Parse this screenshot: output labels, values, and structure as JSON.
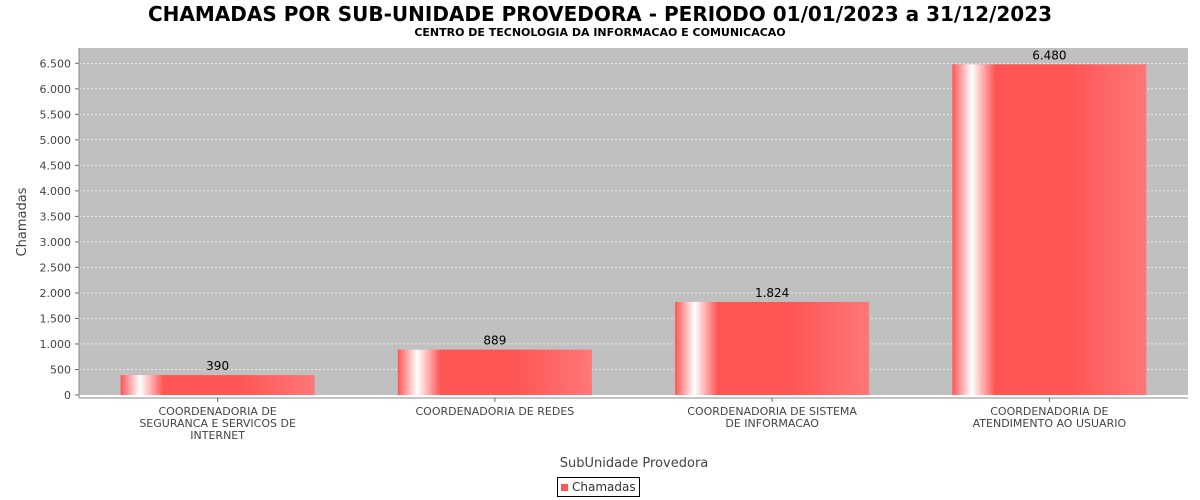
{
  "chart_data": {
    "type": "bar",
    "title": "CHAMADAS POR SUB-UNIDADE PROVEDORA - PERIODO 01/01/2023 a 31/12/2023",
    "subtitle": "CENTRO DE TECNOLOGIA DA INFORMACAO E COMUNICACAO",
    "xlabel": "SubUnidade Provedora",
    "ylabel": "Chamadas",
    "categories": [
      [
        "COORDENADORIA DE",
        "SEGURANCA E SERVICOS DE",
        "INTERNET"
      ],
      [
        "COORDENADORIA DE REDES"
      ],
      [
        "COORDENADORIA DE SISTEMA",
        "DE INFORMACAO"
      ],
      [
        "COORDENADORIA DE",
        "ATENDIMENTO AO USUARIO"
      ]
    ],
    "series": [
      {
        "name": "Chamadas",
        "values": [
          390,
          889,
          1824,
          6480
        ],
        "value_labels": [
          "390",
          "889",
          "1.824",
          "6.480"
        ]
      }
    ],
    "ylim": [
      0,
      6800
    ],
    "yticks": [
      0,
      500,
      1000,
      1500,
      2000,
      2500,
      3000,
      3500,
      4000,
      4500,
      5000,
      5500,
      6000,
      6500
    ],
    "ytick_labels": [
      "0",
      "500",
      "1.000",
      "1.500",
      "2.000",
      "2.500",
      "3.000",
      "3.500",
      "4.000",
      "4.500",
      "5.000",
      "5.500",
      "6.000",
      "6.500"
    ],
    "grid": true,
    "legend": "bottom-center",
    "colors": {
      "bar": "#ff5555",
      "bar_highlight": "#ffffff",
      "plot_background": "#c0c0c0",
      "grid": "#ffffff"
    }
  }
}
